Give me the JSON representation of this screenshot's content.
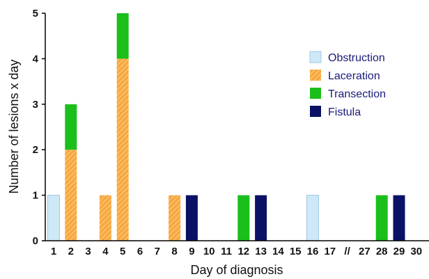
{
  "chart_data": {
    "type": "bar",
    "stacked": true,
    "xlabel": "Day of diagnosis",
    "ylabel": "Number of lesions x day",
    "ylim": [
      0,
      5
    ],
    "yticks": [
      "0",
      "1",
      "2",
      "3",
      "4",
      "5"
    ],
    "categories": [
      "1",
      "2",
      "3",
      "4",
      "5",
      "6",
      "7",
      "8",
      "9",
      "10",
      "11",
      "12",
      "13",
      "14",
      "15",
      "16",
      "17",
      "//",
      "27",
      "28",
      "29",
      "30"
    ],
    "series": [
      {
        "name": "Obstruction",
        "color": "#cfe8f8",
        "pattern": "none",
        "values": [
          1,
          0,
          0,
          0,
          0,
          0,
          0,
          0,
          0,
          0,
          0,
          0,
          0,
          0,
          0,
          1,
          0,
          0,
          0,
          0,
          0,
          0
        ]
      },
      {
        "name": "Laceration",
        "color": "#f7a840",
        "pattern": "hatch",
        "values": [
          0,
          2,
          0,
          1,
          4,
          0,
          0,
          1,
          0,
          0,
          0,
          0,
          0,
          0,
          0,
          0,
          0,
          0,
          0,
          0,
          0,
          0
        ]
      },
      {
        "name": "Transection",
        "color": "#1ec81e",
        "pattern": "dots",
        "values": [
          0,
          1,
          0,
          0,
          1,
          0,
          0,
          0,
          0,
          0,
          0,
          1,
          0,
          0,
          0,
          0,
          0,
          0,
          0,
          1,
          0,
          0
        ]
      },
      {
        "name": "Fistula",
        "color": "#0a1166",
        "pattern": "none",
        "values": [
          0,
          0,
          0,
          0,
          0,
          0,
          0,
          0,
          1,
          0,
          0,
          0,
          1,
          0,
          0,
          0,
          0,
          0,
          0,
          0,
          1,
          0
        ]
      }
    ],
    "legend_position": "top-right",
    "grid": false
  }
}
